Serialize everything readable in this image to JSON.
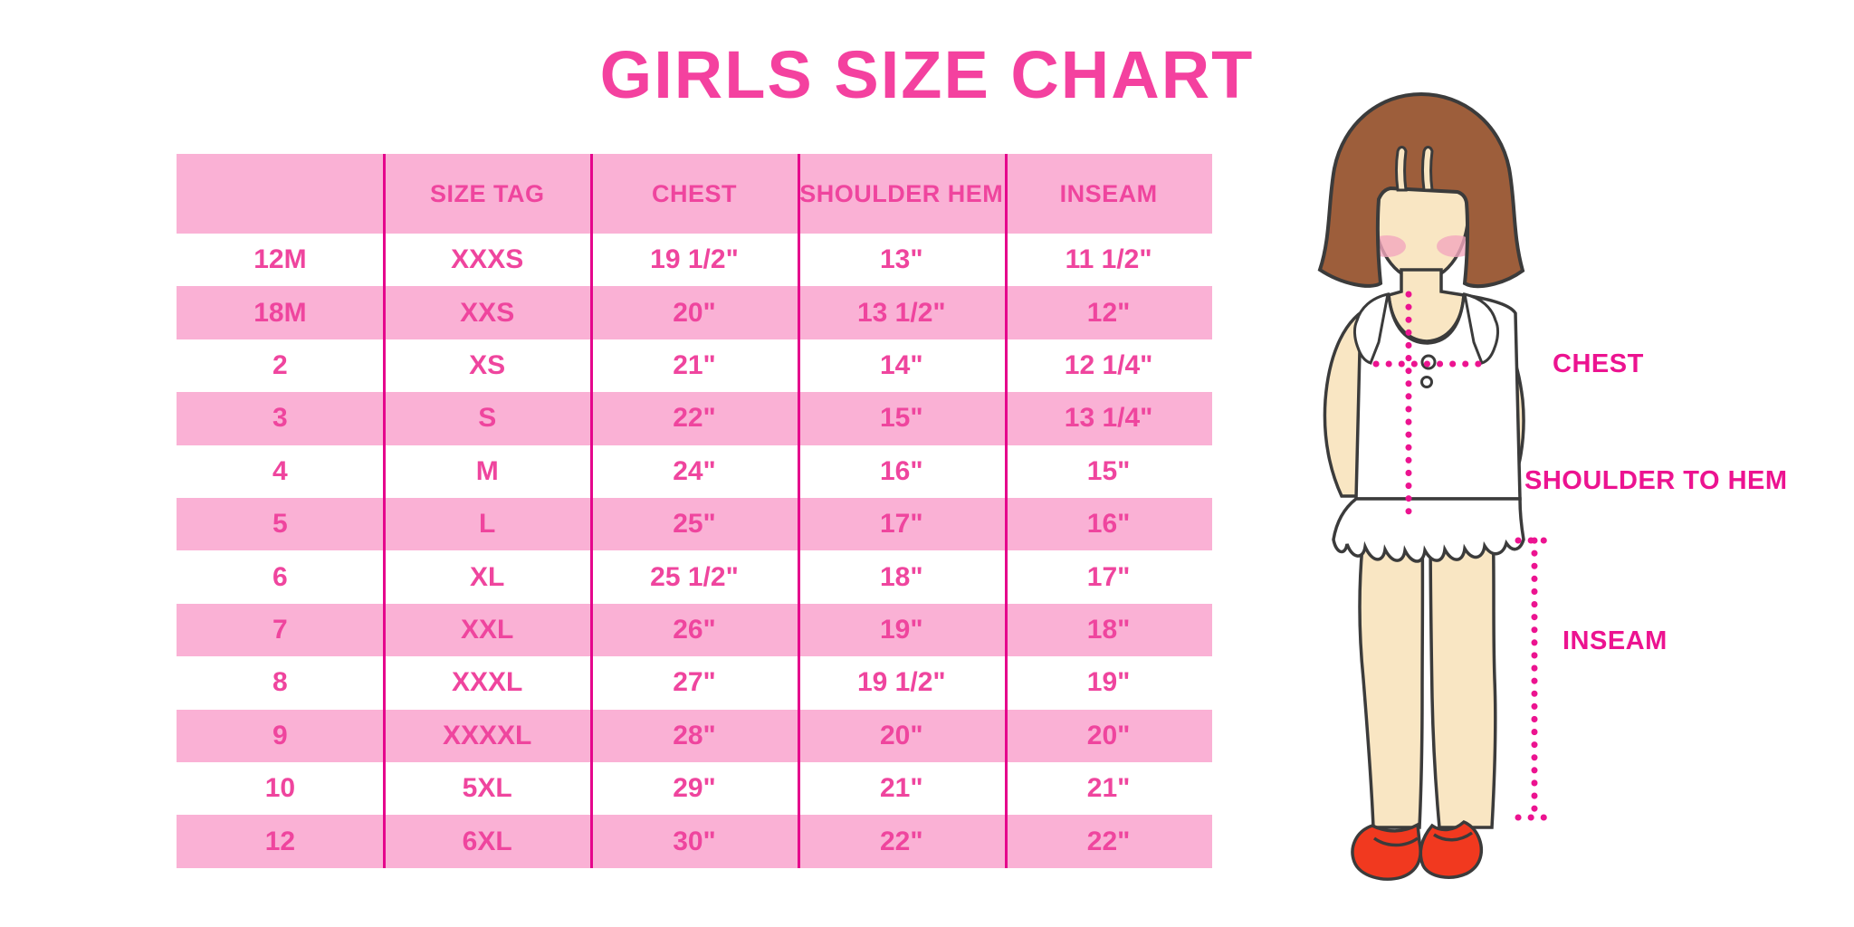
{
  "title": "GIRLS SIZE CHART",
  "chart_data": {
    "type": "table",
    "title": "GIRLS SIZE CHART",
    "columns": [
      "",
      "SIZE TAG",
      "CHEST",
      "SHOULDER HEM",
      "INSEAM"
    ],
    "rows": [
      [
        "12M",
        "XXXS",
        "19 1/2\"",
        "13\"",
        "11 1/2\""
      ],
      [
        "18M",
        "XXS",
        "20\"",
        "13 1/2\"",
        "12\""
      ],
      [
        "2",
        "XS",
        "21\"",
        "14\"",
        "12 1/4\""
      ],
      [
        "3",
        "S",
        "22\"",
        "15\"",
        "13 1/4\""
      ],
      [
        "4",
        "M",
        "24\"",
        "16\"",
        "15\""
      ],
      [
        "5",
        "L",
        "25\"",
        "17\"",
        "16\""
      ],
      [
        "6",
        "XL",
        "25 1/2\"",
        "18\"",
        "17\""
      ],
      [
        "7",
        "XXL",
        "26\"",
        "19\"",
        "18\""
      ],
      [
        "8",
        "XXXL",
        "27\"",
        "19 1/2\"",
        "19\""
      ],
      [
        "9",
        "XXXXL",
        "28\"",
        "20\"",
        "20\""
      ],
      [
        "10",
        "5XL",
        "29\"",
        "21\"",
        "21\""
      ],
      [
        "12",
        "6XL",
        "30\"",
        "22\"",
        "22\""
      ]
    ],
    "row_striping": [
      "white",
      "pink"
    ],
    "layout": "header pink band, alternating white/pink rows, magenta column dividers, no outer border"
  },
  "figure_labels": {
    "chest": "CHEST",
    "shoulder_to_hem": "SHOULDER TO HEM",
    "inseam": "INSEAM"
  },
  "colors": {
    "title_pink": "#F4419F",
    "table_text_pink": "#EF459E",
    "row_band_pink": "#FAB1D5",
    "divider_magenta": "#E5058C",
    "measure_magenta": "#EC1390",
    "hair_brown": "#9D5E3B",
    "skin": "#F9E6C3",
    "blush": "#F3A8BE",
    "shoe_red": "#F1391F",
    "outline": "#3B3B3B"
  }
}
